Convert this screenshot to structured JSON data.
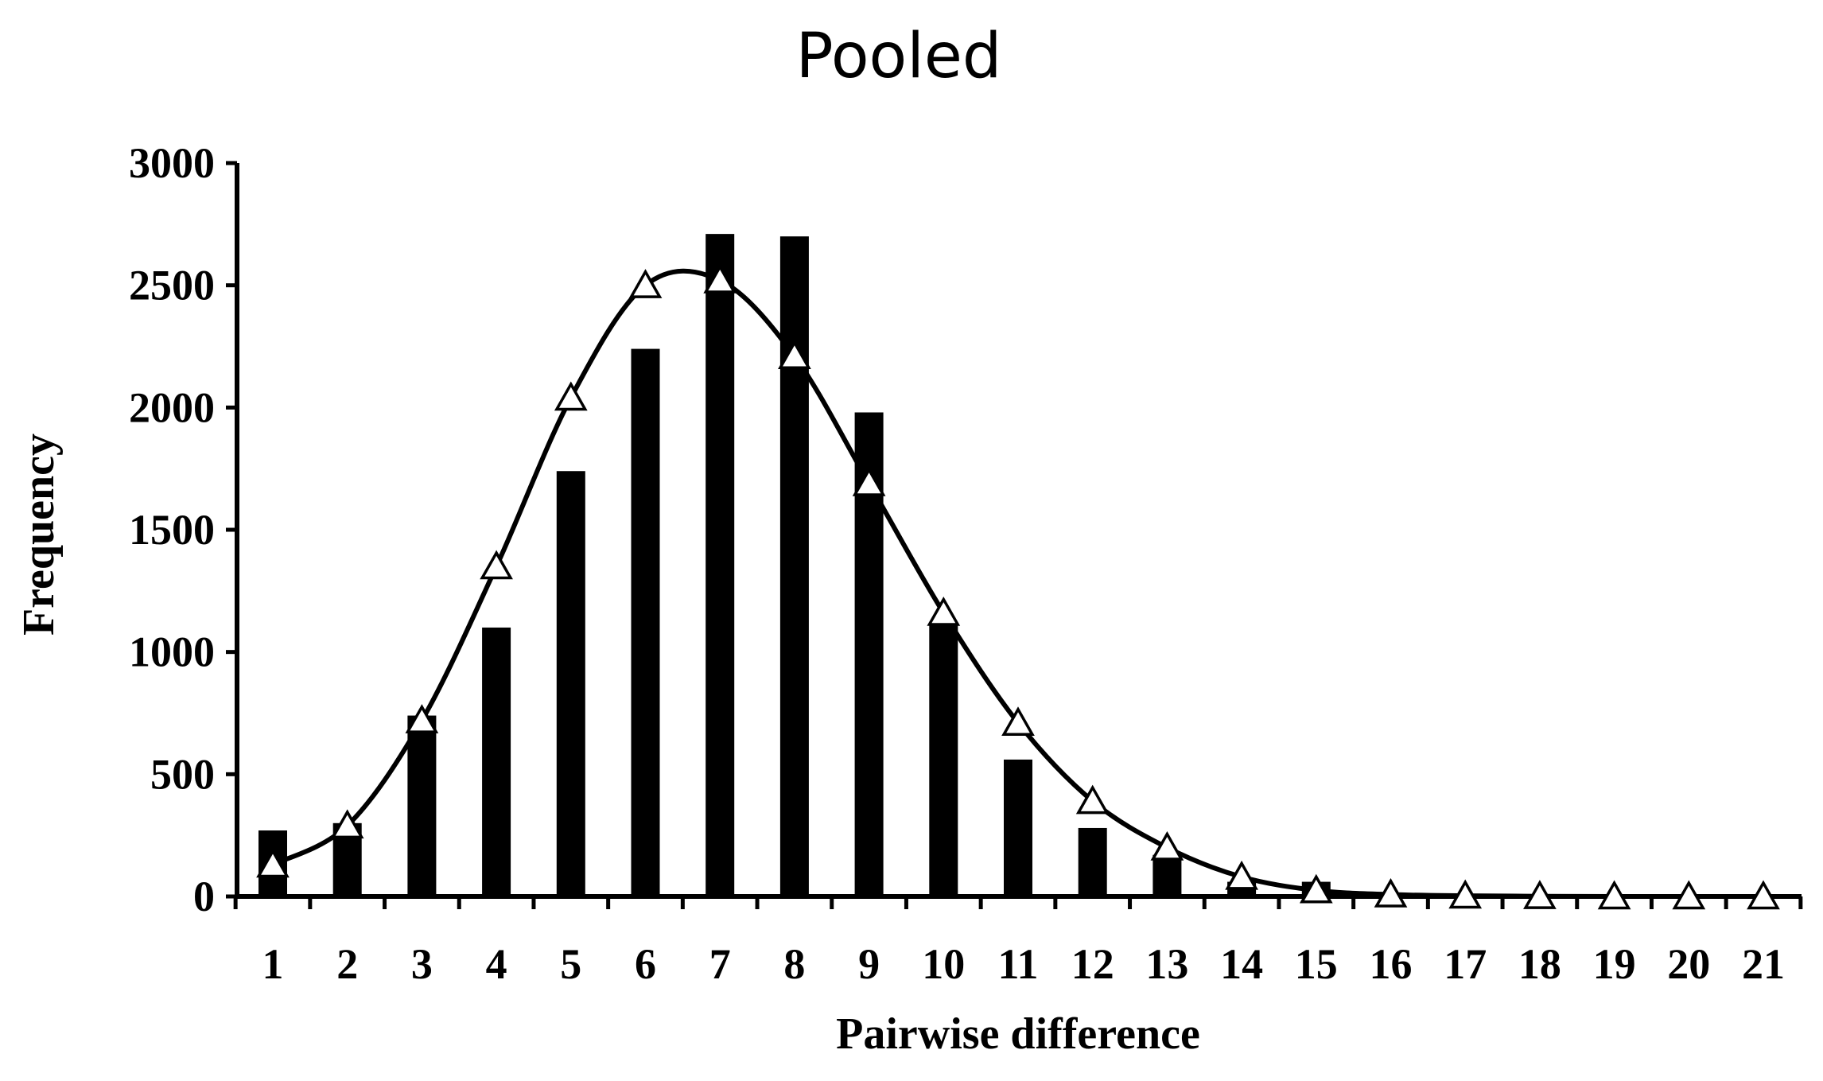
{
  "chart_data": {
    "type": "bar",
    "title": "Pooled",
    "xlabel": "Pairwise difference",
    "ylabel": "Frequency",
    "ylim": [
      0,
      3000
    ],
    "yticks": [
      "0",
      "500",
      "1000",
      "1500",
      "2000",
      "2500",
      "3000"
    ],
    "categories": [
      "1",
      "2",
      "3",
      "4",
      "5",
      "6",
      "7",
      "8",
      "9",
      "10",
      "11",
      "12",
      "13",
      "14",
      "15",
      "16",
      "17",
      "18",
      "19",
      "20",
      "21"
    ],
    "grid": false,
    "legend": "none",
    "series": [
      {
        "type": "bar",
        "color": "#000000",
        "values": [
          270,
          300,
          740,
          1100,
          1740,
          2240,
          2710,
          2700,
          1980,
          1120,
          560,
          280,
          170,
          60,
          60,
          10,
          5,
          0,
          0,
          0,
          0
        ]
      },
      {
        "type": "line",
        "marker": "open-triangle",
        "color": "#000000",
        "values": [
          130,
          290,
          720,
          1350,
          2040,
          2500,
          2520,
          2210,
          1690,
          1160,
          710,
          390,
          200,
          80,
          25,
          8,
          3,
          1,
          0,
          0,
          0
        ]
      }
    ]
  }
}
